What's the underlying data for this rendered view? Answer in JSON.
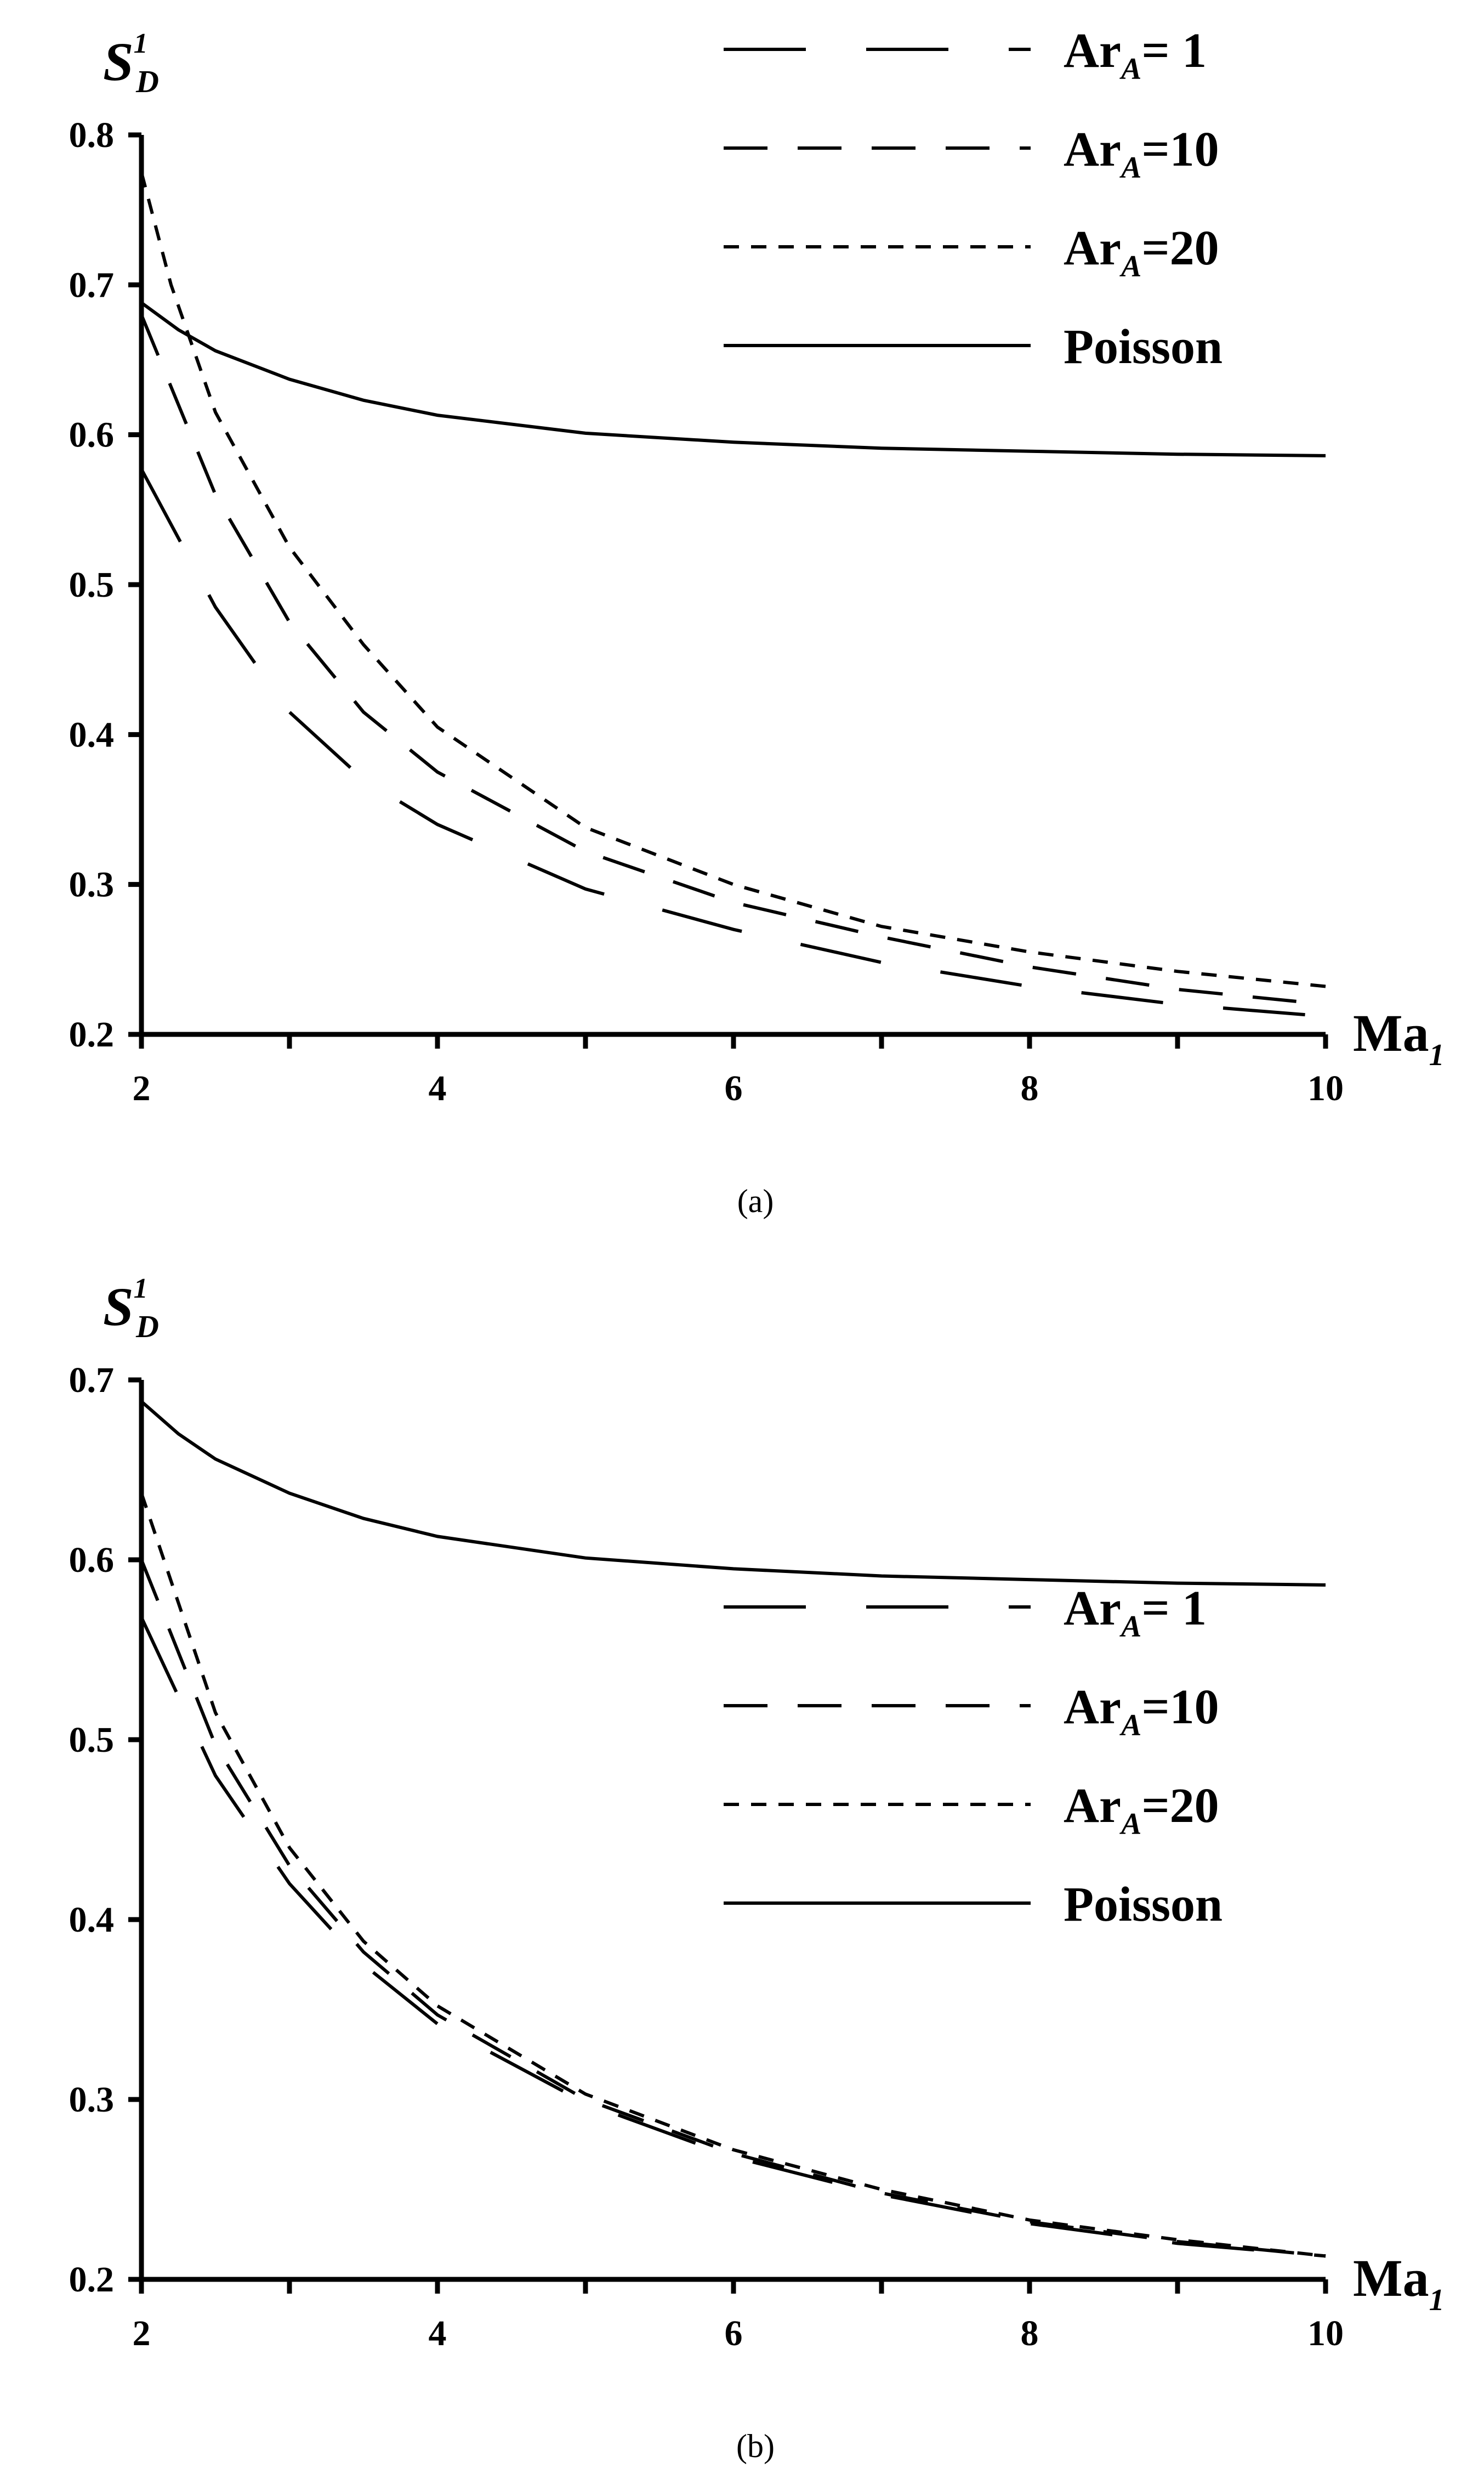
{
  "chart_data": [
    {
      "panel": "a",
      "caption": "(a)",
      "type": "line",
      "ylabel": {
        "main": "S",
        "sub": "D",
        "sup": "1"
      },
      "xlabel": {
        "main": "Ma",
        "sub": "1"
      },
      "xlim": [
        2,
        10
      ],
      "ylim": [
        0.2,
        0.8
      ],
      "xticks": [
        2,
        4,
        6,
        8,
        10
      ],
      "xtick_labels": [
        "2",
        "4",
        "6",
        "8",
        "10"
      ],
      "yticks": [
        0.2,
        0.3,
        0.4,
        0.5,
        0.6,
        0.7,
        0.8
      ],
      "ytick_labels": [
        "0.2",
        "0.3",
        "0.4",
        "0.5",
        "0.6",
        "0.7",
        "0.8"
      ],
      "grid": false,
      "legend_position": "top-right",
      "series": [
        {
          "name": "Ar_A= 1",
          "label_main": "Ar",
          "label_sub": "A",
          "label_rest": "= 1",
          "style": "longdash",
          "x": [
            2,
            2.5,
            3,
            3.5,
            4,
            5,
            6,
            7,
            8,
            9,
            10
          ],
          "y": [
            0.577,
            0.485,
            0.415,
            0.37,
            0.34,
            0.297,
            0.27,
            0.248,
            0.232,
            0.22,
            0.212
          ]
        },
        {
          "name": "Ar_A=10",
          "label_main": "Ar",
          "label_sub": "A",
          "label_rest": "=10",
          "style": "dash",
          "x": [
            2,
            2.5,
            3,
            3.5,
            4,
            5,
            6,
            7,
            8,
            9,
            10
          ],
          "y": [
            0.68,
            0.56,
            0.475,
            0.415,
            0.375,
            0.322,
            0.288,
            0.265,
            0.245,
            0.23,
            0.22
          ]
        },
        {
          "name": "Ar_A=20",
          "label_main": "Ar",
          "label_sub": "A",
          "label_rest": "=20",
          "style": "shortdash",
          "x": [
            2,
            2.2,
            2.5,
            3,
            3.5,
            4,
            5,
            6,
            7,
            8,
            9,
            10
          ],
          "y": [
            0.775,
            0.7,
            0.615,
            0.525,
            0.46,
            0.405,
            0.338,
            0.3,
            0.272,
            0.255,
            0.242,
            0.232
          ]
        },
        {
          "name": "Poisson",
          "label_main": "Poisson",
          "label_sub": "",
          "label_rest": "",
          "style": "solid",
          "x": [
            2,
            2.25,
            2.5,
            3,
            3.5,
            4,
            5,
            6,
            7,
            8,
            9,
            10
          ],
          "y": [
            0.688,
            0.67,
            0.656,
            0.637,
            0.623,
            0.613,
            0.601,
            0.595,
            0.591,
            0.589,
            0.587,
            0.586
          ]
        }
      ]
    },
    {
      "panel": "b",
      "caption": "(b)",
      "type": "line",
      "ylabel": {
        "main": "S",
        "sub": "D",
        "sup": "1"
      },
      "xlabel": {
        "main": "Ma",
        "sub": "1"
      },
      "xlim": [
        2,
        10
      ],
      "ylim": [
        0.2,
        0.7
      ],
      "xticks": [
        2,
        4,
        6,
        8,
        10
      ],
      "xtick_labels": [
        "2",
        "4",
        "6",
        "8",
        "10"
      ],
      "yticks": [
        0.2,
        0.3,
        0.4,
        0.5,
        0.6,
        0.7
      ],
      "ytick_labels": [
        "0.2",
        "0.3",
        "0.4",
        "0.5",
        "0.6",
        "0.7"
      ],
      "grid": false,
      "legend_position": "right",
      "series": [
        {
          "name": "Ar_A= 1",
          "label_main": "Ar",
          "label_sub": "A",
          "label_rest": "= 1",
          "style": "longdash",
          "x": [
            2,
            2.5,
            3,
            3.5,
            4,
            5,
            6,
            7,
            8,
            9,
            10
          ],
          "y": [
            0.568,
            0.48,
            0.42,
            0.375,
            0.342,
            0.298,
            0.268,
            0.247,
            0.231,
            0.22,
            0.213
          ]
        },
        {
          "name": "Ar_A=10",
          "label_main": "Ar",
          "label_sub": "A",
          "label_rest": "=10",
          "style": "dash",
          "x": [
            2,
            2.5,
            3,
            3.5,
            4,
            5,
            6,
            7,
            8,
            9,
            10
          ],
          "y": [
            0.6,
            0.497,
            0.43,
            0.382,
            0.347,
            0.3,
            0.27,
            0.248,
            0.232,
            0.221,
            0.213
          ]
        },
        {
          "name": "Ar_A=20",
          "label_main": "Ar",
          "label_sub": "A",
          "label_rest": "=20",
          "style": "shortdash",
          "x": [
            2,
            2.5,
            3,
            3.5,
            4,
            5,
            6,
            7,
            8,
            9,
            10
          ],
          "y": [
            0.637,
            0.515,
            0.44,
            0.388,
            0.352,
            0.303,
            0.272,
            0.25,
            0.233,
            0.222,
            0.213
          ]
        },
        {
          "name": "Poisson",
          "label_main": "Poisson",
          "label_sub": "",
          "label_rest": "",
          "style": "solid",
          "x": [
            2,
            2.25,
            2.5,
            3,
            3.5,
            4,
            5,
            6,
            7,
            8,
            9,
            10
          ],
          "y": [
            0.688,
            0.67,
            0.656,
            0.637,
            0.623,
            0.613,
            0.601,
            0.595,
            0.591,
            0.589,
            0.587,
            0.586
          ]
        }
      ]
    }
  ]
}
